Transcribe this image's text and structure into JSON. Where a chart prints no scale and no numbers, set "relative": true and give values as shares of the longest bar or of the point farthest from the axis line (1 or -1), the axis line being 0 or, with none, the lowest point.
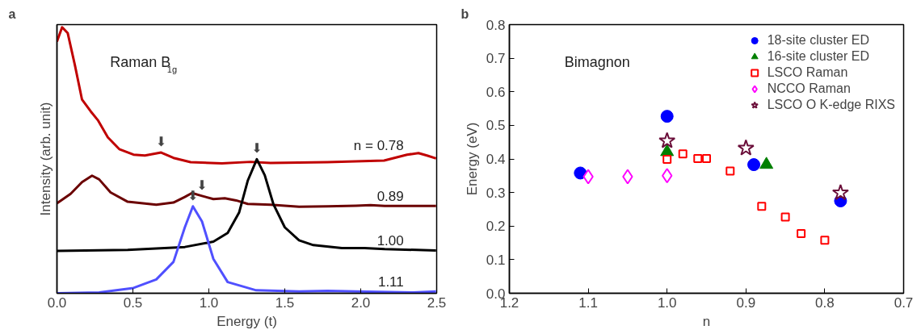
{
  "chart_data": [
    {
      "type": "line",
      "relative": true,
      "xlabel": "Energy (t)",
      "ylabel": "Intensity (arb. unit)",
      "xlim": [
        0,
        2.5
      ],
      "xticks": [
        {
          "value": 0,
          "label": "0.0"
        },
        0.5,
        {
          "value": 1,
          "label": "1.0"
        },
        1.5,
        {
          "value": 2,
          "label": "2.0"
        },
        2.5
      ],
      "tick_labels": "x",
      "grid": false,
      "legend": false,
      "annotations": [
        "a",
        "Raman B$_{1g}$",
        {
          "text": "⬇",
          "x": 0.686,
          "y": 0.529
        },
        {
          "text": "⬇",
          "x": 1.316,
          "y": 0.504
        },
        {
          "text": "⬇",
          "x": 0.955,
          "y": 0.366
        },
        {
          "text": "⬇",
          "x": 0.895,
          "y": 0.327
        }
      ],
      "series": [
        {
          "name": "n = 0.78",
          "color": "#c00000",
          "x": [
            0,
            0.034,
            0.071,
            0.118,
            0.165,
            0.222,
            0.269,
            0.335,
            0.41,
            0.504,
            0.579,
            0.686,
            0.767,
            0.88,
            1.086,
            1.274,
            1.406,
            1.592,
            1.78,
            1.966,
            2.154,
            2.305,
            2.38,
            2.436,
            2.496
          ],
          "values": [
            0.946,
            1.0,
            0.978,
            0.858,
            0.728,
            0.684,
            0.651,
            0.586,
            0.542,
            0.521,
            0.518,
            0.529,
            0.509,
            0.493,
            0.488,
            0.494,
            0.49,
            0.491,
            0.493,
            0.496,
            0.499,
            0.521,
            0.527,
            0.518,
            0.507
          ]
        },
        {
          "name": "0.89",
          "color": "#6b0000",
          "x": [
            0,
            0.09,
            0.165,
            0.231,
            0.278,
            0.353,
            0.466,
            0.654,
            0.767,
            0.842,
            0.889,
            0.955,
            1.03,
            1.105,
            1.18,
            1.256,
            1.406,
            1.594,
            1.782,
            1.97,
            2.064,
            2.158,
            2.496
          ],
          "values": [
            0.338,
            0.374,
            0.418,
            0.442,
            0.428,
            0.379,
            0.344,
            0.333,
            0.341,
            0.362,
            0.377,
            0.366,
            0.354,
            0.357,
            0.349,
            0.336,
            0.333,
            0.325,
            0.327,
            0.329,
            0.331,
            0.328,
            0.328
          ]
        },
        {
          "name": "1.00",
          "color": "#000000",
          "x": [
            0,
            0.466,
            0.842,
            1.03,
            1.124,
            1.199,
            1.256,
            1.316,
            1.368,
            1.425,
            1.5,
            1.594,
            1.688,
            1.876,
            2.026,
            2.158,
            2.496
          ],
          "values": [
            0.159,
            0.163,
            0.174,
            0.194,
            0.227,
            0.303,
            0.423,
            0.504,
            0.444,
            0.335,
            0.248,
            0.199,
            0.181,
            0.17,
            0.17,
            0.166,
            0.161
          ]
        },
        {
          "name": "1.11",
          "color": "#5050ff",
          "x": [
            0,
            0.278,
            0.504,
            0.654,
            0.767,
            0.842,
            0.895,
            0.955,
            1.03,
            1.124,
            1.312,
            1.594,
            1.782,
            1.97,
            2.346,
            2.496
          ],
          "values": [
            0.0,
            0.003,
            0.02,
            0.052,
            0.118,
            0.248,
            0.327,
            0.27,
            0.129,
            0.042,
            0.011,
            0.007,
            0.009,
            0.007,
            0.003,
            0.007
          ]
        }
      ]
    },
    {
      "type": "scatter",
      "xlabel": "n",
      "ylabel": "Energy (eV)",
      "xlim": [
        1.2,
        0.7
      ],
      "xticks": [
        1.2,
        1.1,
        {
          "value": 1,
          "label": "1.0"
        },
        0.9,
        0.8,
        0.7
      ],
      "ylim": [
        0,
        0.8
      ],
      "yticks": [
        {
          "value": 0,
          "label": "0.0"
        },
        0.1,
        0.2,
        0.3,
        0.4,
        0.5,
        0.6,
        0.7,
        0.8
      ],
      "grid": false,
      "legend": "top right",
      "annotations": [
        "b",
        "Bimagnon"
      ],
      "series": [
        {
          "name": "18-site cluster ED",
          "color": "#0000ff",
          "marker": "circle",
          "x": [
            1.11,
            1.0,
            0.89,
            0.78
          ],
          "values": [
            0.358,
            0.527,
            0.383,
            0.275
          ]
        },
        {
          "name": "16-site cluster ED",
          "color": "#007f00",
          "marker": "triangle",
          "x": [
            1.0,
            0.874
          ],
          "values": [
            0.421,
            0.383
          ]
        },
        {
          "name": "LSCO Raman",
          "color": "#ff0000",
          "marker": "square",
          "x": [
            1.0,
            0.98,
            0.961,
            0.95,
            0.92,
            0.88,
            0.85,
            0.83,
            0.8
          ],
          "values": [
            0.399,
            0.415,
            0.401,
            0.401,
            0.364,
            0.259,
            0.227,
            0.178,
            0.158
          ]
        },
        {
          "name": "NCCO Raman",
          "color": "#ff00ff",
          "marker": "diamond",
          "x": [
            1.1,
            1.05,
            1.0
          ],
          "values": [
            0.347,
            0.347,
            0.35
          ]
        },
        {
          "name": "LSCO O K-edge RIXS",
          "color": "#6b0f3a",
          "marker": "star",
          "x": [
            1.0,
            0.9,
            0.78
          ],
          "values": [
            0.454,
            0.432,
            0.299
          ]
        }
      ]
    }
  ]
}
